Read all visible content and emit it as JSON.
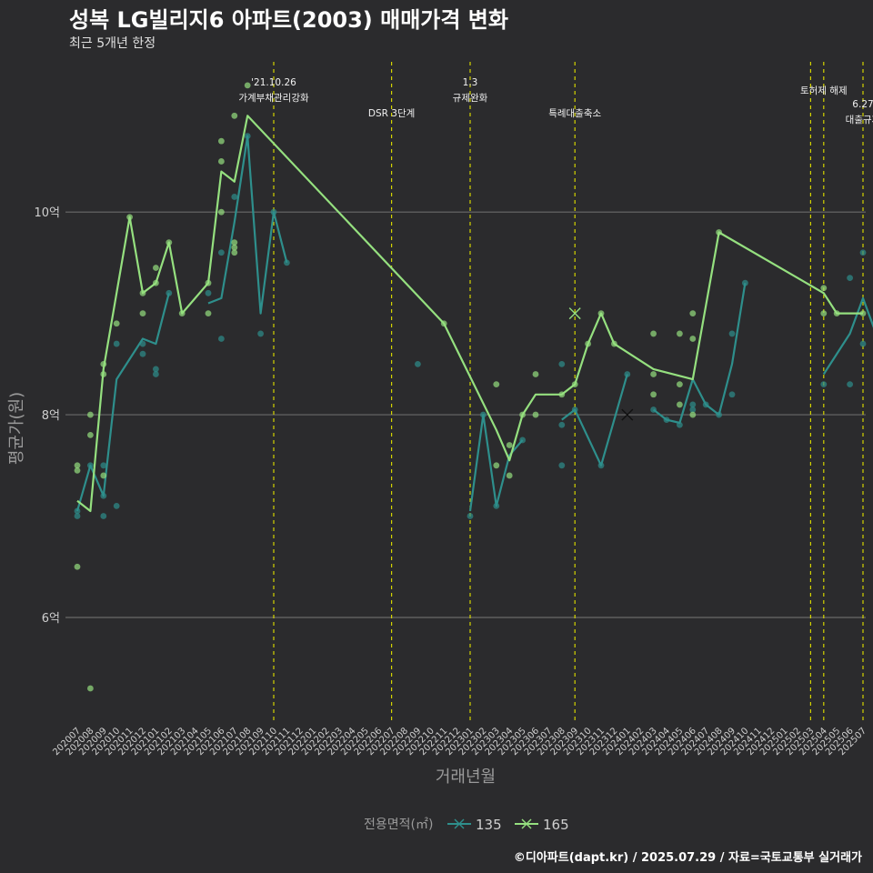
{
  "title": "성복 LG빌리지6 아파트(2003) 매매가격 변화",
  "subtitle": "최근 5개년 한정",
  "caption": "©디아파트(dapt.kr) / 2025.07.29 / 자료=국토교통부 실거래가",
  "chart_data": {
    "type": "line",
    "xlabel": "거래년월",
    "ylabel": "평균가(원)",
    "ylim": [
      4.95,
      11.5
    ],
    "yticks": [
      {
        "value": 6,
        "label": "6억"
      },
      {
        "value": 8,
        "label": "8억"
      },
      {
        "value": 10,
        "label": "10억"
      }
    ],
    "grid": true,
    "legend": {
      "title": "전용면적(㎡)",
      "position": "bottom"
    },
    "categories": [
      "202007",
      "202008",
      "202009",
      "202010",
      "202011",
      "202012",
      "202101",
      "202102",
      "202103",
      "202104",
      "202105",
      "202106",
      "202107",
      "202108",
      "202109",
      "202110",
      "202111",
      "202112",
      "202201",
      "202202",
      "202203",
      "202204",
      "202205",
      "202206",
      "202207",
      "202208",
      "202209",
      "202210",
      "202211",
      "202212",
      "202301",
      "202302",
      "202303",
      "202304",
      "202305",
      "202306",
      "202307",
      "202308",
      "202309",
      "202310",
      "202311",
      "202312",
      "202401",
      "202402",
      "202403",
      "202404",
      "202405",
      "202406",
      "202407",
      "202408",
      "202409",
      "202410",
      "202411",
      "202412",
      "202501",
      "202502",
      "202503",
      "202504",
      "202505",
      "202506",
      "202507"
    ],
    "series": [
      {
        "name": "135",
        "color": "#2e8f8c",
        "line": [
          [
            [
              0,
              7.05
            ],
            [
              1,
              7.5
            ],
            [
              2,
              7.2
            ],
            [
              3,
              8.35
            ],
            [
              5,
              8.75
            ],
            [
              6,
              8.7
            ],
            [
              7,
              9.2
            ]
          ],
          [
            [
              10,
              9.1
            ],
            [
              11,
              9.15
            ],
            [
              12,
              9.9
            ],
            [
              13,
              10.75
            ],
            [
              14,
              9.0
            ],
            [
              15,
              10.0
            ],
            [
              16,
              9.5
            ]
          ],
          [
            [
              30,
              7.05
            ],
            [
              31,
              8.0
            ],
            [
              32,
              7.1
            ],
            [
              33,
              7.6
            ],
            [
              34,
              7.75
            ]
          ],
          [
            [
              37,
              7.95
            ],
            [
              38,
              8.05
            ],
            [
              40,
              7.5
            ],
            [
              42,
              8.4
            ]
          ],
          [
            [
              44,
              8.05
            ],
            [
              45,
              7.95
            ],
            [
              46,
              7.92
            ],
            [
              47,
              8.35
            ],
            [
              48,
              8.1
            ],
            [
              49,
              8.0
            ],
            [
              50,
              8.5
            ],
            [
              51,
              9.3
            ]
          ],
          [
            [
              57,
              8.4
            ],
            [
              59,
              8.8
            ],
            [
              60,
              9.15
            ],
            [
              61,
              8.8
            ]
          ]
        ],
        "points": [
          [
            0,
            7.0
          ],
          [
            0,
            7.05
          ],
          [
            1,
            7.5
          ],
          [
            2,
            7.0
          ],
          [
            2,
            7.2
          ],
          [
            2,
            7.5
          ],
          [
            3,
            7.1
          ],
          [
            3,
            8.7
          ],
          [
            5,
            8.6
          ],
          [
            5,
            8.7
          ],
          [
            6,
            8.4
          ],
          [
            6,
            8.45
          ],
          [
            7,
            9.2
          ],
          [
            10,
            9.2
          ],
          [
            11,
            8.75
          ],
          [
            11,
            9.6
          ],
          [
            12,
            10.15
          ],
          [
            13,
            10.75
          ],
          [
            14,
            8.8
          ],
          [
            15,
            10.0
          ],
          [
            16,
            9.5
          ],
          [
            26,
            8.5
          ],
          [
            30,
            7.0
          ],
          [
            31,
            8.0
          ],
          [
            32,
            7.1
          ],
          [
            34,
            7.75
          ],
          [
            37,
            7.5
          ],
          [
            37,
            7.9
          ],
          [
            37,
            8.5
          ],
          [
            38,
            8.05
          ],
          [
            40,
            7.5
          ],
          [
            42,
            8.4
          ],
          [
            44,
            8.05
          ],
          [
            45,
            7.95
          ],
          [
            46,
            7.9
          ],
          [
            47,
            8.05
          ],
          [
            47,
            8.1
          ],
          [
            48,
            8.1
          ],
          [
            49,
            8.0
          ],
          [
            50,
            8.2
          ],
          [
            50,
            8.8
          ],
          [
            51,
            9.3
          ],
          [
            57,
            8.3
          ],
          [
            59,
            8.3
          ],
          [
            59,
            9.35
          ],
          [
            60,
            8.7
          ],
          [
            60,
            9.6
          ],
          [
            61,
            8.8
          ]
        ],
        "markers": [
          [
            42,
            8.0
          ]
        ]
      },
      {
        "name": "165",
        "color": "#95e07f",
        "line": [
          [
            [
              0,
              7.15
            ],
            [
              1,
              7.05
            ],
            [
              2,
              8.45
            ],
            [
              4,
              9.95
            ],
            [
              5,
              9.2
            ],
            [
              6,
              9.3
            ],
            [
              7,
              9.7
            ],
            [
              8,
              9.0
            ],
            [
              10,
              9.3
            ],
            [
              11,
              10.4
            ],
            [
              12,
              10.3
            ],
            [
              13,
              10.95
            ],
            [
              28,
              8.9
            ],
            [
              32,
              7.85
            ],
            [
              33,
              7.55
            ],
            [
              34,
              8.0
            ],
            [
              35,
              8.2
            ],
            [
              37,
              8.2
            ],
            [
              38,
              8.3
            ],
            [
              39,
              8.7
            ],
            [
              40,
              9.0
            ],
            [
              41,
              8.7
            ],
            [
              44,
              8.45
            ],
            [
              47,
              8.35
            ],
            [
              49,
              9.8
            ],
            [
              57,
              9.2
            ],
            [
              58,
              9.0
            ],
            [
              60,
              9.0
            ]
          ]
        ],
        "points": [
          [
            0,
            6.5
          ],
          [
            0,
            7.45
          ],
          [
            0,
            7.5
          ],
          [
            1,
            5.3
          ],
          [
            1,
            7.8
          ],
          [
            1,
            8.0
          ],
          [
            2,
            7.4
          ],
          [
            2,
            8.4
          ],
          [
            2,
            8.5
          ],
          [
            3,
            8.9
          ],
          [
            4,
            9.95
          ],
          [
            5,
            9.0
          ],
          [
            5,
            9.2
          ],
          [
            6,
            9.3
          ],
          [
            6,
            9.45
          ],
          [
            7,
            9.7
          ],
          [
            8,
            9.0
          ],
          [
            10,
            9.0
          ],
          [
            10,
            9.3
          ],
          [
            11,
            10.0
          ],
          [
            11,
            10.5
          ],
          [
            11,
            10.7
          ],
          [
            12,
            9.6
          ],
          [
            12,
            9.65
          ],
          [
            12,
            9.7
          ],
          [
            12,
            10.95
          ],
          [
            13,
            11.25
          ],
          [
            28,
            8.9
          ],
          [
            32,
            7.5
          ],
          [
            32,
            8.3
          ],
          [
            33,
            7.4
          ],
          [
            33,
            7.7
          ],
          [
            34,
            8.0
          ],
          [
            35,
            8.0
          ],
          [
            35,
            8.4
          ],
          [
            37,
            8.2
          ],
          [
            38,
            8.3
          ],
          [
            39,
            8.7
          ],
          [
            40,
            9.0
          ],
          [
            41,
            8.7
          ],
          [
            44,
            8.2
          ],
          [
            44,
            8.4
          ],
          [
            44,
            8.8
          ],
          [
            46,
            8.1
          ],
          [
            46,
            8.3
          ],
          [
            46,
            8.8
          ],
          [
            47,
            8.0
          ],
          [
            47,
            8.75
          ],
          [
            47,
            9.0
          ],
          [
            49,
            9.8
          ],
          [
            57,
            9.25
          ],
          [
            57,
            9.0
          ],
          [
            58,
            9.0
          ],
          [
            60,
            9.0
          ]
        ],
        "markers": [
          [
            38,
            9.0
          ]
        ]
      }
    ],
    "annotations": [
      {
        "index": 15,
        "lines": [
          "'21.10.26",
          "가계부채관리강화"
        ],
        "row": 0
      },
      {
        "index": 24,
        "lines": [
          "DSR 3단계"
        ],
        "row": 2
      },
      {
        "index": 30,
        "lines": [
          "1.3",
          "규제완화"
        ],
        "row": 0
      },
      {
        "index": 38,
        "lines": [
          "특례대출축소"
        ],
        "row": 2
      },
      {
        "index": 56,
        "lines": [],
        "row": 0
      },
      {
        "index": 57,
        "lines": [
          "토허제 해제"
        ],
        "row": 1
      },
      {
        "index": 60,
        "lines": [
          "6.27",
          "대출규제"
        ],
        "row": 2
      }
    ]
  }
}
